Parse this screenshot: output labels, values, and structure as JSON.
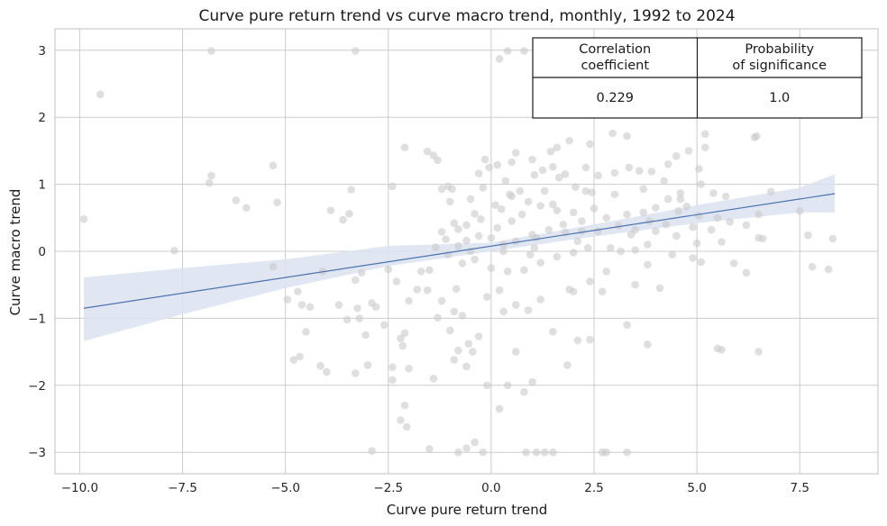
{
  "chart_data": {
    "type": "scatter",
    "title": "Curve pure return trend vs curve macro trend, monthly, 1992 to 2024",
    "xlabel": "Curve pure return trend",
    "ylabel": "Curve macro trend",
    "xlim": [
      -10.6,
      9.4
    ],
    "ylim": [
      -3.32,
      3.32
    ],
    "xticks": [
      -10.0,
      -7.5,
      -5.0,
      -2.5,
      0.0,
      2.5,
      5.0,
      7.5
    ],
    "xtick_labels": [
      "−10.0",
      "−7.5",
      "−5.0",
      "−2.5",
      "0.0",
      "2.5",
      "5.0",
      "7.5"
    ],
    "yticks": [
      -3,
      -2,
      -1,
      0,
      1,
      2,
      3
    ],
    "ytick_labels": [
      "−3",
      "−2",
      "−1",
      "0",
      "1",
      "2",
      "3"
    ],
    "grid": true,
    "points": [
      [
        -9.9,
        0.48
      ],
      [
        -9.5,
        2.34
      ],
      [
        -6.8,
        2.99
      ],
      [
        -3.3,
        2.99
      ],
      [
        0.2,
        2.87
      ],
      [
        0.8,
        2.99
      ],
      [
        1.7,
        2.99
      ],
      [
        0.4,
        2.99
      ],
      [
        -6.8,
        1.13
      ],
      [
        -6.85,
        1.02
      ],
      [
        -5.3,
        1.28
      ],
      [
        -5.2,
        0.73
      ],
      [
        -5.95,
        0.65
      ],
      [
        -6.2,
        0.76
      ],
      [
        -7.7,
        0.01
      ],
      [
        -3.4,
        0.92
      ],
      [
        -3.45,
        0.56
      ],
      [
        -3.6,
        0.47
      ],
      [
        -3.9,
        0.61
      ],
      [
        -4.1,
        -0.3
      ],
      [
        -3.7,
        -0.8
      ],
      [
        -3.5,
        -1.02
      ],
      [
        -3.3,
        -0.43
      ],
      [
        -3.15,
        -0.32
      ],
      [
        -3.25,
        -0.85
      ],
      [
        -2.9,
        -0.77
      ],
      [
        -2.8,
        -0.83
      ],
      [
        -3.2,
        -1.0
      ],
      [
        -3.05,
        -1.25
      ],
      [
        -3.0,
        -1.7
      ],
      [
        -3.3,
        -1.82
      ],
      [
        -4.0,
        -1.8
      ],
      [
        -4.15,
        -1.71
      ],
      [
        -4.5,
        -1.2
      ],
      [
        -4.6,
        -0.8
      ],
      [
        -4.8,
        -1.62
      ],
      [
        -4.65,
        -1.57
      ],
      [
        -4.95,
        -0.72
      ],
      [
        -4.7,
        -0.6
      ],
      [
        -4.4,
        -0.83
      ],
      [
        -5.3,
        -0.23
      ],
      [
        -2.6,
        -1.1
      ],
      [
        -2.4,
        -1.73
      ],
      [
        -2.2,
        -1.3
      ],
      [
        -2.1,
        -1.22
      ],
      [
        -2.15,
        -1.41
      ],
      [
        -2.0,
        -1.75
      ],
      [
        -2.1,
        -2.3
      ],
      [
        -2.05,
        -2.62
      ],
      [
        -2.2,
        -2.52
      ],
      [
        -2.0,
        -0.74
      ],
      [
        -2.3,
        -0.45
      ],
      [
        -1.8,
        -0.57
      ],
      [
        -2.4,
        -1.92
      ],
      [
        -2.4,
        0.97
      ],
      [
        -1.4,
        1.43
      ],
      [
        -1.55,
        1.49
      ],
      [
        -1.3,
        1.36
      ],
      [
        -2.1,
        1.55
      ],
      [
        -1.2,
        0.93
      ],
      [
        -1.05,
        0.97
      ],
      [
        -0.95,
        0.93
      ],
      [
        -1.0,
        0.74
      ],
      [
        -1.1,
        0.18
      ],
      [
        -1.2,
        0.29
      ],
      [
        -1.5,
        -0.28
      ],
      [
        -0.9,
        -0.9
      ],
      [
        -1.3,
        -0.99
      ],
      [
        -0.7,
        -0.96
      ],
      [
        -0.8,
        -1.48
      ],
      [
        -0.55,
        -1.38
      ],
      [
        -0.9,
        -1.62
      ],
      [
        -0.6,
        -1.72
      ],
      [
        -0.45,
        -1.5
      ],
      [
        -1.4,
        -1.9
      ],
      [
        -1.5,
        -2.95
      ],
      [
        -0.6,
        -2.94
      ],
      [
        -0.4,
        -2.85
      ],
      [
        -2.9,
        -2.98
      ],
      [
        -0.8,
        -3.0
      ],
      [
        -0.2,
        -3.0
      ],
      [
        0.85,
        -3.0
      ],
      [
        1.1,
        -3.0
      ],
      [
        1.3,
        -3.0
      ],
      [
        1.5,
        -3.0
      ],
      [
        2.7,
        -3.0
      ],
      [
        2.8,
        -3.0
      ],
      [
        3.3,
        -3.0
      ],
      [
        0.2,
        -2.35
      ],
      [
        0.4,
        -2.0
      ],
      [
        0.8,
        -2.1
      ],
      [
        -0.1,
        -2.0
      ],
      [
        1.85,
        -1.7
      ],
      [
        1.0,
        -1.95
      ],
      [
        0.6,
        -1.5
      ],
      [
        2.1,
        -1.33
      ],
      [
        2.4,
        -1.32
      ],
      [
        1.5,
        -1.2
      ],
      [
        0.6,
        -0.8
      ],
      [
        0.3,
        -0.9
      ],
      [
        0.2,
        -0.58
      ],
      [
        -0.1,
        -0.68
      ],
      [
        1.2,
        -0.72
      ],
      [
        1.9,
        -0.57
      ],
      [
        2.0,
        -0.6
      ],
      [
        2.4,
        -0.45
      ],
      [
        2.7,
        -0.6
      ],
      [
        3.5,
        -0.5
      ],
      [
        4.1,
        -0.55
      ],
      [
        3.8,
        -1.39
      ],
      [
        3.3,
        -1.1
      ],
      [
        5.5,
        -1.45
      ],
      [
        5.6,
        -1.47
      ],
      [
        6.5,
        -1.5
      ],
      [
        7.8,
        -0.23
      ],
      [
        8.2,
        -0.27
      ],
      [
        5.9,
        -0.18
      ],
      [
        6.2,
        -0.32
      ],
      [
        5.1,
        -0.16
      ],
      [
        4.9,
        -0.1
      ],
      [
        3.8,
        -0.2
      ],
      [
        4.4,
        -0.05
      ],
      [
        2.9,
        0.05
      ],
      [
        7.5,
        0.6
      ],
      [
        7.7,
        0.24
      ],
      [
        8.3,
        0.19
      ],
      [
        6.6,
        0.19
      ],
      [
        6.5,
        0.2
      ],
      [
        6.8,
        0.89
      ],
      [
        6.5,
        0.55
      ],
      [
        5.7,
        0.82
      ],
      [
        4.8,
        1.5
      ],
      [
        5.2,
        1.75
      ],
      [
        5.2,
        1.55
      ],
      [
        5.05,
        1.23
      ],
      [
        5.1,
        1.0
      ],
      [
        5.4,
        0.87
      ],
      [
        6.4,
        1.7
      ],
      [
        6.45,
        1.72
      ],
      [
        4.5,
        1.42
      ],
      [
        4.3,
        1.3
      ],
      [
        3.3,
        1.72
      ],
      [
        2.95,
        1.76
      ],
      [
        2.4,
        1.6
      ],
      [
        1.9,
        1.65
      ],
      [
        1.6,
        1.55
      ],
      [
        1.45,
        1.49
      ],
      [
        1.0,
        1.37
      ],
      [
        0.6,
        1.47
      ],
      [
        0.5,
        1.33
      ],
      [
        -0.15,
        1.37
      ],
      [
        0.15,
        1.29
      ],
      [
        -0.05,
        1.25
      ],
      [
        -0.3,
        1.16
      ],
      [
        -0.2,
        0.95
      ],
      [
        0.25,
        0.63
      ],
      [
        0.45,
        0.85
      ],
      [
        0.7,
        0.9
      ],
      [
        1.05,
        1.14
      ],
      [
        1.25,
        1.21
      ],
      [
        1.5,
        1.26
      ],
      [
        1.8,
        1.15
      ],
      [
        2.05,
        0.96
      ],
      [
        2.3,
        0.9
      ],
      [
        2.6,
        1.13
      ],
      [
        3.0,
        1.17
      ],
      [
        3.35,
        1.25
      ],
      [
        3.6,
        1.2
      ],
      [
        3.9,
        1.19
      ],
      [
        4.2,
        1.05
      ],
      [
        4.6,
        0.87
      ],
      [
        4.75,
        0.67
      ],
      [
        5.05,
        0.53
      ],
      [
        5.5,
        0.5
      ],
      [
        5.8,
        0.44
      ],
      [
        6.2,
        0.39
      ],
      [
        5.6,
        0.14
      ],
      [
        5.0,
        0.12
      ],
      [
        4.5,
        0.23
      ],
      [
        4.0,
        0.3
      ],
      [
        3.5,
        0.32
      ],
      [
        3.1,
        0.38
      ],
      [
        2.6,
        0.3
      ],
      [
        2.2,
        0.3
      ],
      [
        1.8,
        0.28
      ],
      [
        1.4,
        0.32
      ],
      [
        1.0,
        0.25
      ],
      [
        0.6,
        0.15
      ],
      [
        0.3,
        0.1
      ],
      [
        0.0,
        0.2
      ],
      [
        -0.3,
        0.23
      ],
      [
        -0.6,
        0.16
      ],
      [
        -0.8,
        0.08
      ],
      [
        -1.05,
        -0.05
      ],
      [
        -0.7,
        -0.18
      ],
      [
        -0.4,
        -0.12
      ],
      [
        0.0,
        -0.25
      ],
      [
        0.4,
        -0.3
      ],
      [
        0.8,
        -0.28
      ],
      [
        1.2,
        -0.17
      ],
      [
        1.6,
        -0.08
      ],
      [
        2.0,
        -0.02
      ],
      [
        2.35,
        0.05
      ],
      [
        3.3,
        0.55
      ],
      [
        3.7,
        0.58
      ],
      [
        4.0,
        0.65
      ],
      [
        4.3,
        0.78
      ],
      [
        3.0,
        0.85
      ],
      [
        2.5,
        0.64
      ],
      [
        2.0,
        0.58
      ],
      [
        1.6,
        0.61
      ],
      [
        1.2,
        0.68
      ],
      [
        0.9,
        0.74
      ],
      [
        0.5,
        0.82
      ],
      [
        0.1,
        0.69
      ],
      [
        -0.4,
        0.56
      ],
      [
        -0.6,
        0.39
      ],
      [
        -0.9,
        0.42
      ],
      [
        -0.5,
        0.78
      ],
      [
        -1.7,
        -0.3
      ],
      [
        -1.55,
        -0.58
      ],
      [
        -1.2,
        -0.74
      ],
      [
        -0.85,
        -0.56
      ],
      [
        -1.0,
        -1.18
      ],
      [
        -0.3,
        -1.27
      ],
      [
        0.9,
        -0.88
      ],
      [
        1.5,
        0.7
      ],
      [
        2.3,
        1.25
      ],
      [
        3.7,
        0.93
      ],
      [
        4.6,
        0.78
      ],
      [
        1.1,
        0.2
      ],
      [
        0.5,
        0.45
      ],
      [
        -0.25,
        0.48
      ],
      [
        2.8,
        0.5
      ],
      [
        3.4,
        0.25
      ],
      [
        3.85,
        0.45
      ],
      [
        1.75,
        0.4
      ],
      [
        0.95,
        -0.05
      ],
      [
        0.3,
        0.0
      ],
      [
        2.8,
        -0.3
      ],
      [
        3.5,
        0.02
      ],
      [
        4.25,
        0.4
      ],
      [
        1.3,
        0.9
      ],
      [
        2.1,
        0.15
      ],
      [
        -0.5,
        0.0
      ],
      [
        0.75,
        0.55
      ],
      [
        -0.8,
        0.33
      ],
      [
        4.9,
        0.36
      ],
      [
        5.35,
        0.32
      ],
      [
        2.45,
        0.88
      ],
      [
        1.65,
        1.1
      ],
      [
        0.35,
        1.05
      ],
      [
        3.15,
        0.0
      ],
      [
        3.8,
        0.1
      ],
      [
        4.55,
        0.6
      ],
      [
        2.2,
        0.45
      ],
      [
        1.05,
        0.05
      ],
      [
        0.15,
        0.35
      ],
      [
        -1.35,
        0.06
      ],
      [
        -2.5,
        -0.27
      ]
    ],
    "regression": {
      "x0": -9.9,
      "y0": -0.85,
      "x1": 8.35,
      "y1": 0.86
    },
    "confidence_band": {
      "x": [
        -9.9,
        -7.5,
        -5.0,
        -2.5,
        0.0,
        2.5,
        5.0,
        7.5,
        8.35
      ],
      "lower": [
        -1.34,
        -0.94,
        -0.55,
        -0.22,
        0.0,
        0.22,
        0.42,
        0.58,
        0.58
      ],
      "upper": [
        -0.39,
        -0.25,
        -0.12,
        0.08,
        0.13,
        0.4,
        0.69,
        0.95,
        1.15
      ]
    },
    "table": {
      "headers": [
        [
          "Correlation",
          "coefficient"
        ],
        [
          "Probability",
          "of significance"
        ]
      ],
      "values": [
        "0.229",
        "1.0"
      ]
    },
    "colors": {
      "points": "#c9c9c9",
      "line": "#4c72b0",
      "band": "#dbe3f1",
      "grid": "#cccccc",
      "axes": "#cccccc"
    }
  }
}
